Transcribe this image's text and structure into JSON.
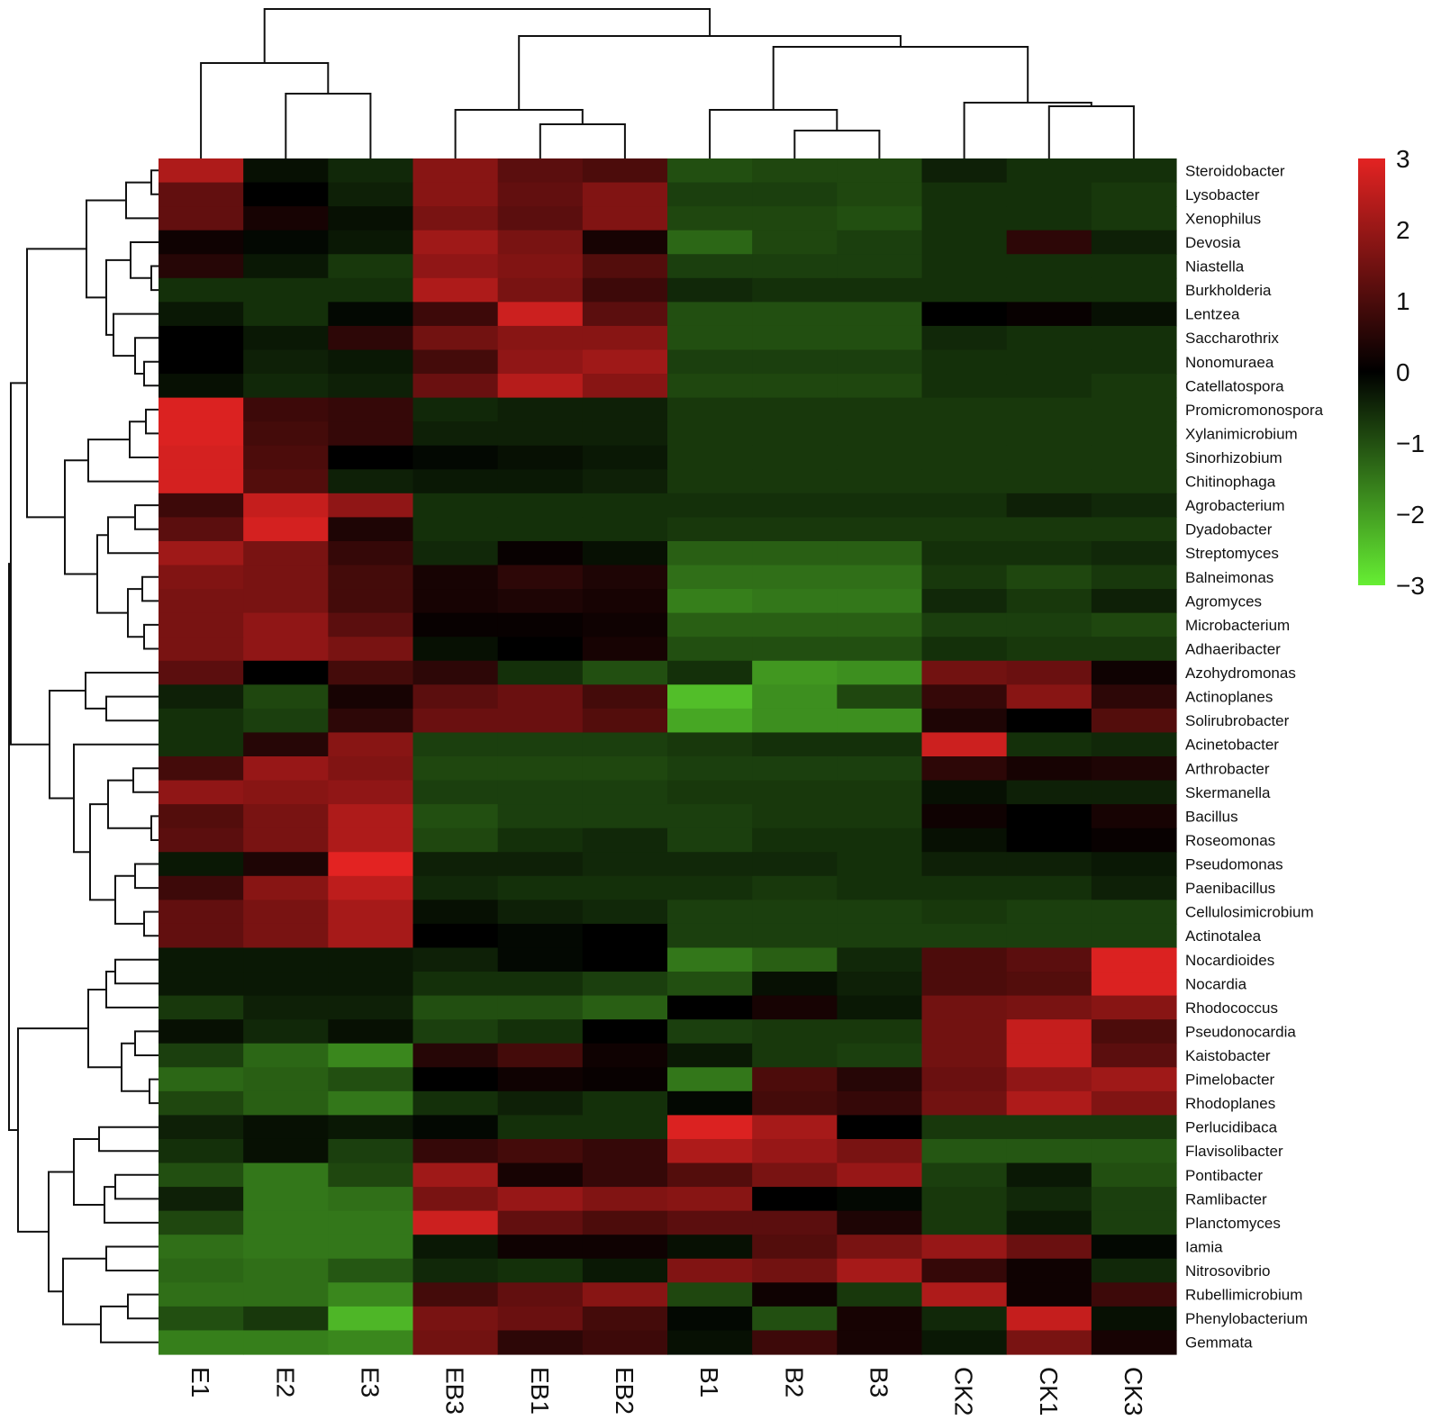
{
  "chart_data": {
    "type": "heatmap",
    "columns": [
      "E1",
      "E2",
      "E3",
      "EB3",
      "EB1",
      "EB2",
      "B1",
      "B2",
      "B3",
      "CK2",
      "CK1",
      "CK3"
    ],
    "rows": [
      "Steroidobacter",
      "Lysobacter",
      "Xenophilus",
      "Devosia",
      "Niastella",
      "Burkholderia",
      "Lentzea",
      "Saccharothrix",
      "Nonomuraea",
      "Catellatospora",
      "Promicromonospora",
      "Xylanimicrobium",
      "Sinorhizobium",
      "Chitinophaga",
      "Agrobacterium",
      "Dyadobacter",
      "Streptomyces",
      "Balneimonas",
      "Agromyces",
      "Microbacterium",
      "Adhaeribacter",
      "Azohydromonas",
      "Actinoplanes",
      "Solirubrobacter",
      "Acinetobacter",
      "Arthrobacter",
      "Skermanella",
      "Bacillus",
      "Roseomonas",
      "Pseudomonas",
      "Paenibacillus",
      "Cellulosimicrobium",
      "Actinotalea",
      "Nocardioides",
      "Nocardia",
      "Rhodococcus",
      "Pseudonocardia",
      "Kaistobacter",
      "Pimelobacter",
      "Rhodoplanes",
      "Perlucidibaca",
      "Flavisolibacter",
      "Pontibacter",
      "Ramlibacter",
      "Planctomyces",
      "Iamia",
      "Nitrosovibrio",
      "Rubellimicrobium",
      "Phenylobacterium",
      "Gemmata"
    ],
    "values": [
      [
        2.3,
        -0.2,
        -0.5,
        1.8,
        1.2,
        1.0,
        -1.0,
        -0.9,
        -0.9,
        -0.4,
        -0.6,
        -0.6
      ],
      [
        1.3,
        0.0,
        -0.4,
        1.8,
        1.3,
        1.7,
        -0.8,
        -0.8,
        -0.9,
        -0.6,
        -0.6,
        -0.7
      ],
      [
        1.3,
        0.3,
        -0.2,
        1.6,
        1.2,
        1.7,
        -0.9,
        -0.9,
        -1.0,
        -0.6,
        -0.6,
        -0.7
      ],
      [
        0.2,
        -0.1,
        -0.3,
        2.1,
        1.6,
        0.3,
        -1.3,
        -0.9,
        -0.8,
        -0.6,
        0.6,
        -0.4
      ],
      [
        0.5,
        -0.3,
        -0.7,
        1.9,
        1.7,
        1.1,
        -0.8,
        -0.8,
        -0.8,
        -0.6,
        -0.6,
        -0.6
      ],
      [
        -0.6,
        -0.6,
        -0.6,
        2.3,
        1.6,
        0.8,
        -0.5,
        -0.6,
        -0.6,
        -0.6,
        -0.6,
        -0.6
      ],
      [
        -0.3,
        -0.6,
        -0.1,
        0.8,
        2.7,
        1.2,
        -1.0,
        -1.0,
        -1.0,
        0.0,
        0.1,
        -0.2
      ],
      [
        0.0,
        -0.3,
        0.6,
        1.5,
        1.8,
        1.8,
        -1.0,
        -1.0,
        -1.0,
        -0.5,
        -0.6,
        -0.6
      ],
      [
        0.0,
        -0.4,
        -0.3,
        0.9,
        1.9,
        2.1,
        -0.8,
        -0.8,
        -0.8,
        -0.6,
        -0.6,
        -0.6
      ],
      [
        -0.2,
        -0.5,
        -0.4,
        1.4,
        2.4,
        1.8,
        -0.9,
        -0.9,
        -0.9,
        -0.6,
        -0.6,
        -0.7
      ],
      [
        2.9,
        0.8,
        0.7,
        -0.5,
        -0.4,
        -0.4,
        -0.7,
        -0.7,
        -0.7,
        -0.7,
        -0.7,
        -0.7
      ],
      [
        2.9,
        0.9,
        0.7,
        -0.4,
        -0.4,
        -0.4,
        -0.7,
        -0.7,
        -0.7,
        -0.7,
        -0.7,
        -0.7
      ],
      [
        2.8,
        1.0,
        0.0,
        -0.1,
        -0.2,
        -0.3,
        -0.7,
        -0.7,
        -0.7,
        -0.7,
        -0.7,
        -0.7
      ],
      [
        2.8,
        1.1,
        -0.4,
        -0.3,
        -0.3,
        -0.4,
        -0.7,
        -0.7,
        -0.7,
        -0.7,
        -0.7,
        -0.7
      ],
      [
        0.8,
        2.6,
        1.9,
        -0.6,
        -0.6,
        -0.6,
        -0.6,
        -0.6,
        -0.6,
        -0.6,
        -0.4,
        -0.5
      ],
      [
        1.2,
        2.8,
        0.4,
        -0.6,
        -0.6,
        -0.6,
        -0.7,
        -0.7,
        -0.7,
        -0.7,
        -0.7,
        -0.7
      ],
      [
        2.1,
        1.6,
        0.7,
        -0.5,
        0.1,
        -0.2,
        -1.2,
        -1.2,
        -1.2,
        -0.6,
        -0.6,
        -0.5
      ],
      [
        1.7,
        1.6,
        0.9,
        0.3,
        0.6,
        0.4,
        -1.4,
        -1.4,
        -1.4,
        -0.7,
        -0.9,
        -0.7
      ],
      [
        1.6,
        1.6,
        0.9,
        0.3,
        0.4,
        0.3,
        -1.6,
        -1.5,
        -1.5,
        -0.5,
        -0.7,
        -0.4
      ],
      [
        1.6,
        1.9,
        1.2,
        0.1,
        0.1,
        0.2,
        -1.2,
        -1.2,
        -1.2,
        -0.8,
        -0.8,
        -0.9
      ],
      [
        1.6,
        1.9,
        1.6,
        -0.2,
        0.0,
        0.3,
        -1.0,
        -1.0,
        -1.0,
        -0.6,
        -0.7,
        -0.7
      ],
      [
        1.2,
        0.0,
        0.9,
        0.6,
        -0.6,
        -1.0,
        -0.6,
        -1.9,
        -1.8,
        1.5,
        1.4,
        0.2
      ],
      [
        -0.4,
        -0.9,
        0.3,
        1.2,
        1.4,
        0.9,
        -2.4,
        -1.8,
        -0.9,
        0.7,
        1.8,
        0.6
      ],
      [
        -0.6,
        -0.8,
        0.6,
        1.4,
        1.4,
        1.1,
        -2.1,
        -1.8,
        -1.8,
        0.4,
        0.0,
        1.1
      ],
      [
        -0.6,
        0.5,
        1.8,
        -0.8,
        -0.8,
        -0.8,
        -0.7,
        -0.6,
        -0.6,
        2.7,
        -0.6,
        -0.5
      ],
      [
        0.9,
        2.0,
        1.7,
        -0.9,
        -0.9,
        -0.9,
        -0.8,
        -0.8,
        -0.8,
        0.6,
        0.3,
        0.4
      ],
      [
        1.9,
        1.8,
        1.9,
        -0.8,
        -0.8,
        -0.8,
        -0.7,
        -0.7,
        -0.7,
        -0.2,
        -0.4,
        -0.4
      ],
      [
        1.1,
        1.6,
        2.3,
        -1.0,
        -0.8,
        -0.8,
        -0.8,
        -0.7,
        -0.7,
        0.2,
        0.0,
        0.3
      ],
      [
        1.2,
        1.6,
        2.3,
        -0.9,
        -0.6,
        -0.5,
        -0.8,
        -0.6,
        -0.6,
        -0.2,
        0.0,
        0.1
      ],
      [
        -0.3,
        0.4,
        3.0,
        -0.4,
        -0.4,
        -0.5,
        -0.5,
        -0.5,
        -0.6,
        -0.4,
        -0.4,
        -0.3
      ],
      [
        0.8,
        1.8,
        2.5,
        -0.5,
        -0.6,
        -0.6,
        -0.6,
        -0.7,
        -0.6,
        -0.6,
        -0.6,
        -0.4
      ],
      [
        1.3,
        1.6,
        2.2,
        -0.2,
        -0.4,
        -0.5,
        -0.8,
        -0.8,
        -0.8,
        -0.7,
        -0.8,
        -0.8
      ],
      [
        1.3,
        1.6,
        2.2,
        0.0,
        -0.1,
        0.0,
        -0.8,
        -0.8,
        -0.8,
        -0.8,
        -0.8,
        -0.8
      ],
      [
        -0.3,
        -0.3,
        -0.3,
        -0.4,
        -0.1,
        0.0,
        -1.5,
        -1.2,
        -0.5,
        1.0,
        1.2,
        2.9
      ],
      [
        -0.3,
        -0.3,
        -0.3,
        -0.6,
        -0.6,
        -0.8,
        -1.0,
        -0.2,
        -0.4,
        1.0,
        1.1,
        2.9
      ],
      [
        -0.7,
        -0.4,
        -0.4,
        -1.0,
        -1.0,
        -1.2,
        0.0,
        0.3,
        -0.3,
        1.5,
        1.6,
        1.8
      ],
      [
        -0.2,
        -0.5,
        -0.2,
        -0.8,
        -0.6,
        0.0,
        -0.8,
        -0.7,
        -0.7,
        1.5,
        2.6,
        1.0
      ],
      [
        -0.8,
        -1.3,
        -1.7,
        0.5,
        0.9,
        0.2,
        -0.3,
        -0.7,
        -0.8,
        1.5,
        2.6,
        1.2
      ],
      [
        -1.3,
        -1.2,
        -1.0,
        0.0,
        0.2,
        0.1,
        -1.5,
        1.0,
        0.5,
        1.4,
        1.9,
        2.1
      ],
      [
        -0.9,
        -1.2,
        -1.5,
        -0.6,
        -0.4,
        -0.6,
        -0.1,
        0.9,
        0.7,
        1.5,
        2.3,
        1.7
      ],
      [
        -0.4,
        -0.2,
        -0.3,
        -0.1,
        -0.6,
        -0.6,
        2.9,
        2.2,
        0.0,
        -0.7,
        -0.7,
        -0.7
      ],
      [
        -0.6,
        -0.2,
        -0.8,
        0.7,
        0.9,
        0.7,
        2.3,
        2.0,
        1.6,
        -1.1,
        -1.1,
        -1.1
      ],
      [
        -1.0,
        -1.5,
        -0.9,
        2.1,
        0.3,
        0.7,
        1.1,
        1.6,
        2.0,
        -0.8,
        -0.3,
        -1.0
      ],
      [
        -0.4,
        -1.5,
        -1.4,
        1.6,
        2.0,
        1.7,
        1.8,
        0.0,
        -0.1,
        -0.7,
        -0.5,
        -0.8
      ],
      [
        -0.9,
        -1.5,
        -1.5,
        2.7,
        1.3,
        1.0,
        1.2,
        1.2,
        0.4,
        -0.7,
        -0.3,
        -0.8
      ],
      [
        -1.4,
        -1.5,
        -1.5,
        -0.3,
        0.2,
        0.2,
        -0.2,
        1.1,
        1.6,
        2.0,
        1.4,
        -0.1
      ],
      [
        -1.3,
        -1.4,
        -1.1,
        -0.5,
        -0.6,
        -0.3,
        1.7,
        1.5,
        2.2,
        0.7,
        0.2,
        -0.5
      ],
      [
        -1.4,
        -1.4,
        -1.7,
        0.9,
        1.3,
        1.8,
        -0.9,
        0.2,
        -0.7,
        2.3,
        0.2,
        0.8
      ],
      [
        -1.0,
        -0.7,
        -2.3,
        1.6,
        1.4,
        0.9,
        -0.1,
        -1.0,
        0.3,
        -0.5,
        2.6,
        -0.2
      ],
      [
        -1.6,
        -1.6,
        -1.7,
        1.5,
        0.6,
        0.8,
        -0.2,
        0.8,
        0.3,
        -0.3,
        1.6,
        0.3
      ]
    ],
    "scale": {
      "min": -3,
      "max": 3,
      "ticks": [
        "3",
        "2",
        "1",
        "0",
        "−1",
        "−2",
        "−3"
      ]
    },
    "colors": {
      "high": "#e32322",
      "mid": "#000000",
      "low": "#66ee33"
    },
    "column_dendrogram": true,
    "row_dendrogram": true
  }
}
